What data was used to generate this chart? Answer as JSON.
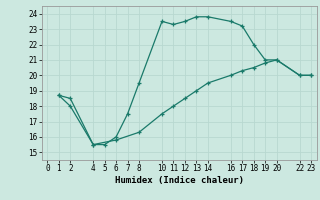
{
  "xlabel": "Humidex (Indice chaleur)",
  "ylabel": "",
  "bg_color": "#cce8e0",
  "grid_color": "#b8d8d0",
  "line_color": "#1a7a6a",
  "xlim": [
    -0.5,
    23.5
  ],
  "ylim": [
    14.5,
    24.5
  ],
  "xticks": [
    0,
    1,
    2,
    4,
    5,
    6,
    7,
    8,
    10,
    11,
    12,
    13,
    14,
    16,
    17,
    18,
    19,
    20,
    22,
    23
  ],
  "yticks": [
    15,
    16,
    17,
    18,
    19,
    20,
    21,
    22,
    23,
    24
  ],
  "line1_x": [
    1,
    2,
    4,
    5,
    6,
    7,
    8,
    10,
    11,
    12,
    13,
    14,
    16,
    17,
    18,
    19,
    20,
    22,
    23
  ],
  "line1_y": [
    18.7,
    18.0,
    15.5,
    15.5,
    16.0,
    17.5,
    19.5,
    23.5,
    23.3,
    23.5,
    23.8,
    23.8,
    23.5,
    23.2,
    22.0,
    21.0,
    21.0,
    20.0,
    20.0
  ],
  "line2_x": [
    1,
    2,
    4,
    6,
    8,
    10,
    11,
    12,
    13,
    14,
    16,
    17,
    18,
    19,
    20,
    22,
    23
  ],
  "line2_y": [
    18.7,
    18.5,
    15.5,
    15.8,
    16.3,
    17.5,
    18.0,
    18.5,
    19.0,
    19.5,
    20.0,
    20.3,
    20.5,
    20.8,
    21.0,
    20.0,
    20.0
  ]
}
